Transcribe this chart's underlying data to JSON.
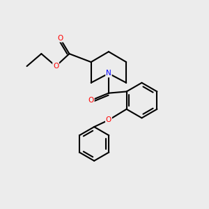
{
  "background_color": "#ececec",
  "bond_color": "#000000",
  "bond_width": 1.5,
  "atom_colors": {
    "O": "#ff0000",
    "N": "#0000ff",
    "C": "#000000"
  },
  "figsize": [
    3.0,
    3.0
  ],
  "dpi": 100
}
